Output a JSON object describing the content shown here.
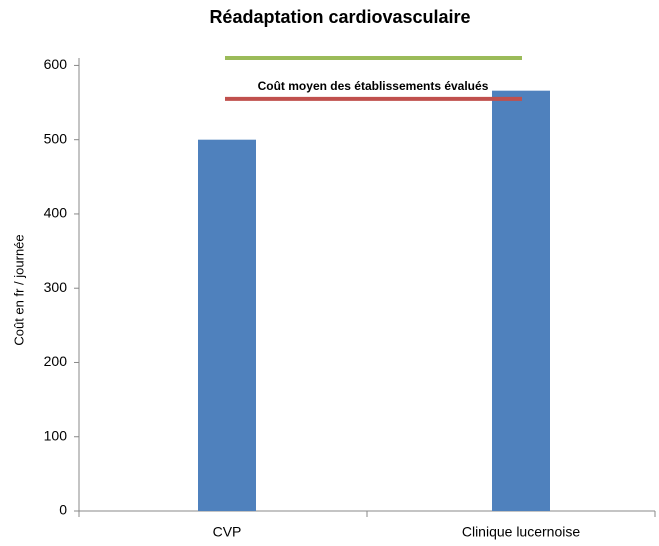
{
  "chart_data": {
    "type": "bar",
    "title": "Réadaptation cardiovasculaire",
    "y_label": "Coût en fr / journée",
    "categories": [
      "CVP",
      "Clinique lucernoise"
    ],
    "values": [
      500,
      566
    ],
    "color": "#4f81bd",
    "ylim": [
      0,
      610
    ],
    "yticks": [
      0,
      100,
      200,
      300,
      400,
      500,
      600
    ],
    "grid": false,
    "reference_lines": [
      {
        "value": 610,
        "color": "#9bbb59"
      },
      {
        "value": 555,
        "color": "#c0504d",
        "label": "Coût moyen des établissements évalués"
      }
    ]
  }
}
